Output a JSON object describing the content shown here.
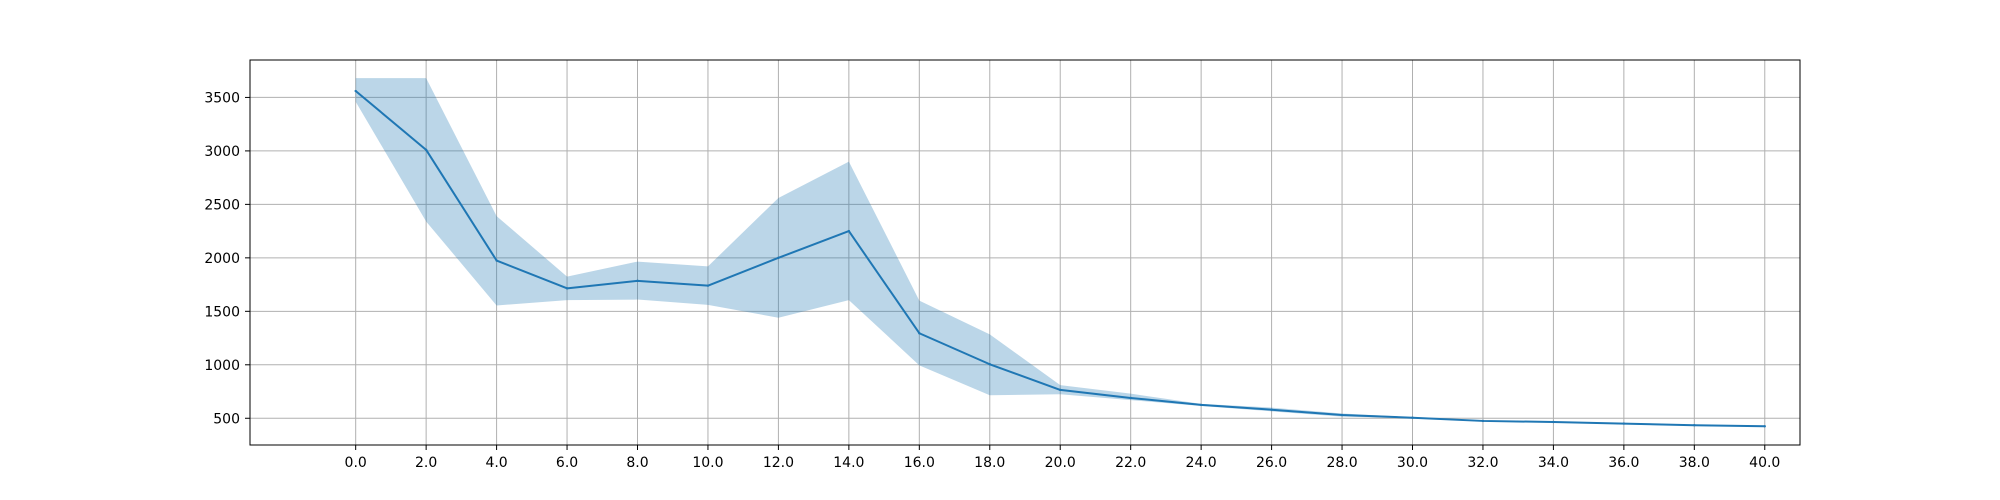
{
  "chart_data": {
    "type": "line",
    "title": "",
    "xlabel": "",
    "ylabel": "",
    "xlim": [
      -3.0,
      41.0
    ],
    "ylim": [
      250,
      3850
    ],
    "grid": true,
    "x_ticks": [
      0,
      2,
      4,
      6,
      8,
      10,
      12,
      14,
      16,
      18,
      20,
      22,
      24,
      26,
      28,
      30,
      32,
      34,
      36,
      38,
      40
    ],
    "x_tick_labels": [
      "0.0",
      "2.0",
      "4.0",
      "6.0",
      "8.0",
      "10.0",
      "12.0",
      "14.0",
      "16.0",
      "18.0",
      "20.0",
      "22.0",
      "24.0",
      "26.0",
      "28.0",
      "30.0",
      "32.0",
      "34.0",
      "36.0",
      "38.0",
      "40.0"
    ],
    "y_ticks": [
      500,
      1000,
      1500,
      2000,
      2500,
      3000,
      3500
    ],
    "y_tick_labels": [
      "500",
      "1000",
      "1500",
      "2000",
      "2500",
      "3000",
      "3500"
    ],
    "series": [
      {
        "color": "#1f77b4",
        "band_color": "#1f77b4",
        "band_opacity": 0.3,
        "x": [
          0,
          2,
          4,
          6,
          8,
          10,
          12,
          14,
          16,
          18,
          20,
          22,
          24,
          26,
          28,
          30,
          32,
          34,
          36,
          38,
          40
        ],
        "y": [
          3560,
          3010,
          1975,
          1715,
          1785,
          1740,
          2000,
          2250,
          1295,
          1005,
          765,
          690,
          625,
          580,
          530,
          505,
          475,
          465,
          450,
          435,
          425
        ],
        "upper": [
          3680,
          3680,
          2390,
          1825,
          1965,
          1920,
          2560,
          2900,
          1600,
          1285,
          810,
          730,
          635,
          600,
          545,
          510,
          480,
          470,
          455,
          440,
          430
        ],
        "lower": [
          3460,
          2340,
          1555,
          1605,
          1610,
          1560,
          1440,
          1605,
          995,
          715,
          725,
          670,
          615,
          565,
          515,
          500,
          470,
          460,
          445,
          430,
          420
        ]
      }
    ]
  }
}
